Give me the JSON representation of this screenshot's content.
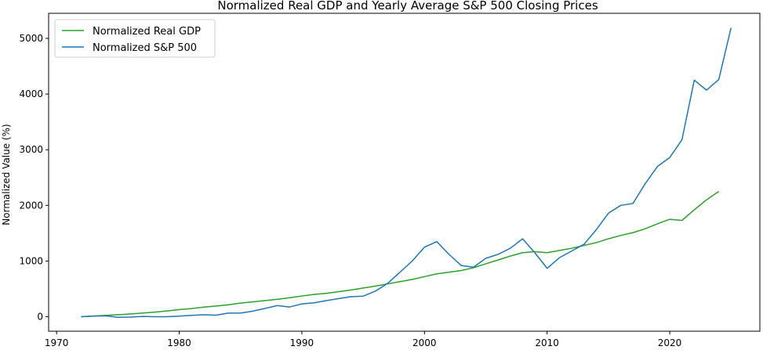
{
  "chart_data": {
    "type": "line",
    "title": "Normalized Real GDP and Yearly Average S&P 500 Closing Prices",
    "xlabel": "",
    "ylabel": "Normalized Value (%)",
    "xlim": [
      1969.35,
      2027.35
    ],
    "ylim": [
      -260,
      5450
    ],
    "x_ticks": [
      1970,
      1980,
      1990,
      2000,
      2010,
      2020
    ],
    "y_ticks": [
      0,
      1000,
      2000,
      3000,
      4000,
      5000
    ],
    "grid": false,
    "legend_position": "top-left",
    "series": [
      {
        "name": "Normalized Real GDP",
        "color": "#2ca02c",
        "x": [
          1972,
          1973,
          1974,
          1975,
          1976,
          1977,
          1978,
          1979,
          1980,
          1981,
          1982,
          1983,
          1984,
          1985,
          1986,
          1987,
          1988,
          1989,
          1990,
          1991,
          1992,
          1993,
          1994,
          1995,
          1996,
          1997,
          1998,
          1999,
          2000,
          2001,
          2002,
          2003,
          2004,
          2005,
          2006,
          2007,
          2008,
          2009,
          2010,
          2011,
          2012,
          2013,
          2014,
          2015,
          2016,
          2017,
          2018,
          2019,
          2020,
          2021,
          2022,
          2023,
          2024
        ],
        "y": [
          0,
          12,
          24,
          36,
          50,
          66,
          83,
          104,
          128,
          146,
          173,
          192,
          214,
          244,
          268,
          291,
          313,
          341,
          372,
          401,
          421,
          450,
          480,
          515,
          550,
          590,
          630,
          670,
          720,
          770,
          800,
          830,
          880,
          950,
          1020,
          1090,
          1150,
          1170,
          1150,
          1190,
          1230,
          1280,
          1330,
          1400,
          1460,
          1510,
          1580,
          1670,
          1750,
          1730,
          1920,
          2100,
          2250
        ]
      },
      {
        "name": "Normalized S&P 500",
        "color": "#1f77b4",
        "x": [
          1972,
          1973,
          1974,
          1975,
          1976,
          1977,
          1978,
          1979,
          1980,
          1981,
          1982,
          1983,
          1984,
          1985,
          1986,
          1987,
          1988,
          1989,
          1990,
          1991,
          1992,
          1993,
          1994,
          1995,
          1996,
          1997,
          1998,
          1999,
          2000,
          2001,
          2002,
          2003,
          2004,
          2005,
          2006,
          2007,
          2008,
          2009,
          2010,
          2011,
          2012,
          2013,
          2014,
          2015,
          2016,
          2017,
          2018,
          2019,
          2020,
          2021,
          2022,
          2023,
          2024,
          2025
        ],
        "y": [
          0,
          10,
          16,
          -10,
          -6,
          5,
          0,
          0,
          10,
          25,
          35,
          28,
          65,
          65,
          100,
          150,
          200,
          175,
          230,
          250,
          290,
          325,
          360,
          370,
          460,
          600,
          800,
          1000,
          1250,
          1350,
          1120,
          920,
          890,
          1050,
          1120,
          1230,
          1400,
          1150,
          870,
          1060,
          1180,
          1300,
          1560,
          1860,
          2000,
          2035,
          2390,
          2700,
          2860,
          3180,
          4250,
          4070,
          4260,
          5190
        ]
      }
    ]
  }
}
